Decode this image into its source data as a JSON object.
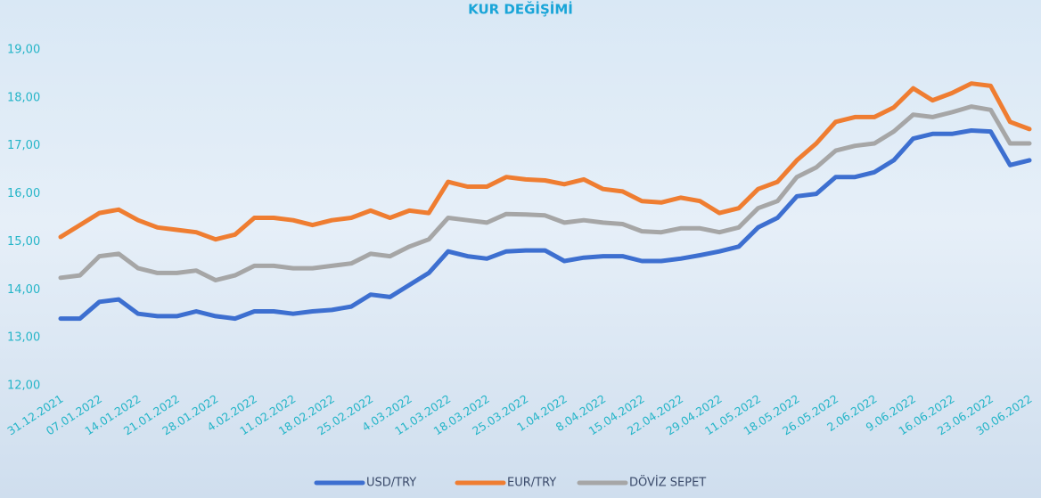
{
  "chart_data": {
    "type": "line",
    "title": "KUR DEĞİŞİMİ",
    "categories": [
      "31.12.2021",
      null,
      "07.01.2022",
      null,
      "14.01.2022",
      null,
      "21.01.2022",
      null,
      "28.01.2022",
      null,
      "4.02.2022",
      null,
      "11.02.2022",
      null,
      "18.02.2022",
      null,
      "25.02.2022",
      null,
      "4.03.2022",
      null,
      "11.03.2022",
      null,
      "18.03.2022",
      null,
      "25.03.2022",
      null,
      "1.04.2022",
      null,
      "8.04.2022",
      null,
      "15.04.2022",
      null,
      "22.04.2022",
      null,
      "29.04.2022",
      null,
      "11.05.2022",
      null,
      "18.05.2022",
      null,
      "26.05.2022",
      null,
      "2.06.2022",
      null,
      "9.06.2022",
      null,
      "16.06.2022",
      null,
      "23.06.2022",
      null,
      "30.06.2022"
    ],
    "series": [
      {
        "name": "USD/TRY",
        "color": "#3d6fd0",
        "values": [
          13.4,
          13.4,
          13.75,
          13.8,
          13.5,
          13.45,
          13.45,
          13.55,
          13.45,
          13.4,
          13.55,
          13.55,
          13.5,
          13.55,
          13.58,
          13.65,
          13.9,
          13.85,
          14.1,
          14.35,
          14.8,
          14.7,
          14.65,
          14.8,
          14.82,
          14.82,
          14.6,
          14.67,
          14.7,
          14.7,
          14.6,
          14.6,
          14.65,
          14.72,
          14.8,
          14.9,
          15.3,
          15.5,
          15.95,
          16.0,
          16.35,
          16.35,
          16.45,
          16.7,
          17.15,
          17.25,
          17.25,
          17.32,
          17.3,
          16.6,
          16.7
        ]
      },
      {
        "name": "EUR/TRY",
        "color": "#ef7d31",
        "values": [
          15.1,
          15.35,
          15.6,
          15.67,
          15.45,
          15.3,
          15.25,
          15.2,
          15.05,
          15.15,
          15.5,
          15.5,
          15.45,
          15.35,
          15.45,
          15.5,
          15.65,
          15.5,
          15.65,
          15.6,
          16.25,
          16.15,
          16.15,
          16.35,
          16.3,
          16.28,
          16.2,
          16.3,
          16.1,
          16.05,
          15.85,
          15.82,
          15.92,
          15.85,
          15.6,
          15.7,
          16.1,
          16.25,
          16.7,
          17.05,
          17.5,
          17.6,
          17.6,
          17.8,
          18.2,
          17.95,
          18.1,
          18.3,
          18.25,
          17.5,
          17.35
        ]
      },
      {
        "name": "DÖVİZ SEPET",
        "color": "#a6a6a6",
        "values": [
          14.25,
          14.3,
          14.7,
          14.75,
          14.45,
          14.35,
          14.35,
          14.4,
          14.2,
          14.3,
          14.5,
          14.5,
          14.45,
          14.45,
          14.5,
          14.55,
          14.75,
          14.7,
          14.9,
          15.05,
          15.5,
          15.45,
          15.4,
          15.58,
          15.57,
          15.55,
          15.4,
          15.45,
          15.4,
          15.37,
          15.22,
          15.2,
          15.28,
          15.28,
          15.2,
          15.3,
          15.7,
          15.85,
          16.35,
          16.55,
          16.9,
          17.0,
          17.05,
          17.3,
          17.65,
          17.6,
          17.7,
          17.82,
          17.75,
          17.05,
          17.05
        ]
      }
    ],
    "ylim": [
      12,
      19
    ],
    "yticks": [
      {
        "value": 12,
        "label": "12,00"
      },
      {
        "value": 13,
        "label": "13,00"
      },
      {
        "value": 14,
        "label": "14,00"
      },
      {
        "value": 15,
        "label": "15,00"
      },
      {
        "value": 16,
        "label": "16,00"
      },
      {
        "value": 17,
        "label": "17,00"
      },
      {
        "value": 18,
        "label": "18,00"
      },
      {
        "value": 19,
        "label": "19,00"
      }
    ],
    "grid": false,
    "legend": "bottom"
  }
}
